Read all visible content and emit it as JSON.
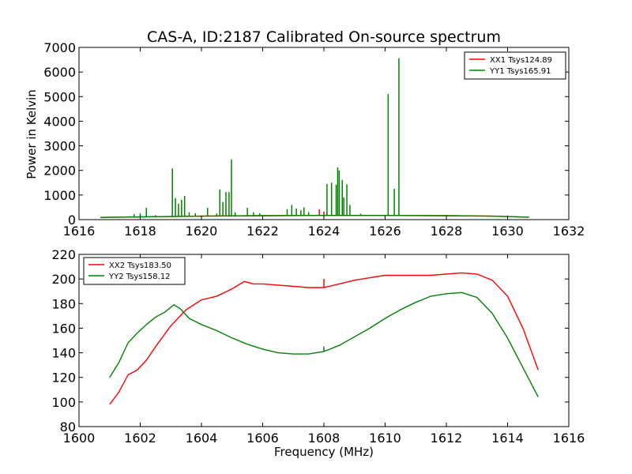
{
  "chart_data": [
    {
      "type": "line",
      "title": "CAS-A, ID:2187 Calibrated On-source spectrum",
      "xlabel": "",
      "ylabel": "Power in Kelvin",
      "xlim": [
        1616,
        1632
      ],
      "ylim": [
        0,
        7000
      ],
      "xticks": [
        "1616",
        "1618",
        "1620",
        "1622",
        "1624",
        "1626",
        "1628",
        "1630",
        "1632"
      ],
      "yticks": [
        "0",
        "1000",
        "2000",
        "3000",
        "4000",
        "5000",
        "6000",
        "7000"
      ],
      "grid": false,
      "legend_position": "top-right",
      "series": [
        {
          "name": "XX1 Tsys124.89",
          "color": "#ff0000",
          "baseline": [
            [
              1616.7,
              90
            ],
            [
              1618,
              110
            ],
            [
              1620,
              140
            ],
            [
              1622,
              160
            ],
            [
              1624,
              170
            ],
            [
              1626,
              170
            ],
            [
              1628,
              160
            ],
            [
              1629.5,
              140
            ],
            [
              1630.7,
              100
            ]
          ],
          "spikes": [
            [
              1623.85,
              420
            ],
            [
              1624.0,
              330
            ],
            [
              1624.1,
              250
            ],
            [
              1625.0,
              190
            ]
          ]
        },
        {
          "name": "YY1 Tsys165.91",
          "color": "#008000",
          "baseline": [
            [
              1616.7,
              90
            ],
            [
              1618,
              110
            ],
            [
              1620,
              140
            ],
            [
              1622,
              160
            ],
            [
              1624,
              170
            ],
            [
              1626,
              170
            ],
            [
              1628,
              160
            ],
            [
              1629.5,
              140
            ],
            [
              1630.7,
              100
            ]
          ],
          "spikes": [
            [
              1617.8,
              220
            ],
            [
              1618.0,
              250
            ],
            [
              1618.2,
              480
            ],
            [
              1618.5,
              180
            ],
            [
              1619.05,
              2080
            ],
            [
              1619.15,
              880
            ],
            [
              1619.25,
              650
            ],
            [
              1619.35,
              800
            ],
            [
              1619.45,
              960
            ],
            [
              1619.6,
              300
            ],
            [
              1619.8,
              260
            ],
            [
              1620.2,
              480
            ],
            [
              1620.5,
              250
            ],
            [
              1620.6,
              1230
            ],
            [
              1620.7,
              720
            ],
            [
              1620.8,
              1120
            ],
            [
              1620.9,
              1120
            ],
            [
              1620.98,
              2450
            ],
            [
              1621.1,
              300
            ],
            [
              1621.5,
              480
            ],
            [
              1621.7,
              300
            ],
            [
              1621.9,
              260
            ],
            [
              1622.8,
              420
            ],
            [
              1622.95,
              600
            ],
            [
              1623.1,
              450
            ],
            [
              1623.25,
              380
            ],
            [
              1623.35,
              500
            ],
            [
              1623.5,
              300
            ],
            [
              1624.1,
              1450
            ],
            [
              1624.25,
              1500
            ],
            [
              1624.4,
              1420
            ],
            [
              1624.45,
              2120
            ],
            [
              1624.5,
              2000
            ],
            [
              1624.6,
              1610
            ],
            [
              1624.65,
              900
            ],
            [
              1624.75,
              1430
            ],
            [
              1624.85,
              600
            ],
            [
              1625.2,
              240
            ],
            [
              1626.1,
              5100
            ],
            [
              1626.3,
              1250
            ],
            [
              1626.45,
              6560
            ]
          ]
        }
      ]
    },
    {
      "type": "line",
      "title": "",
      "xlabel": "Frequency (MHz)",
      "ylabel": "",
      "xlim": [
        1600,
        1616
      ],
      "ylim": [
        80,
        220
      ],
      "xticks": [
        "1600",
        "1602",
        "1604",
        "1606",
        "1608",
        "1610",
        "1612",
        "1614",
        "1616"
      ],
      "yticks": [
        "80",
        "100",
        "120",
        "140",
        "160",
        "180",
        "200",
        "220"
      ],
      "grid": false,
      "legend_position": "top-left",
      "series": [
        {
          "name": "XX2 Tsys183.50",
          "color": "#ff0000",
          "points": [
            [
              1601.0,
              98
            ],
            [
              1601.3,
              108
            ],
            [
              1601.6,
              122
            ],
            [
              1601.9,
              126
            ],
            [
              1602.2,
              134
            ],
            [
              1602.5,
              145
            ],
            [
              1603.0,
              162
            ],
            [
              1603.5,
              175
            ],
            [
              1604.0,
              183
            ],
            [
              1604.5,
              186
            ],
            [
              1605.0,
              192
            ],
            [
              1605.4,
              198
            ],
            [
              1605.7,
              196
            ],
            [
              1606.0,
              196
            ],
            [
              1606.5,
              195
            ],
            [
              1607.0,
              194
            ],
            [
              1607.5,
              193
            ],
            [
              1608.0,
              193
            ],
            [
              1608.5,
              196
            ],
            [
              1609.0,
              199
            ],
            [
              1609.5,
              201
            ],
            [
              1610.0,
              203
            ],
            [
              1610.5,
              203
            ],
            [
              1611.0,
              203
            ],
            [
              1611.5,
              203
            ],
            [
              1612.0,
              204
            ],
            [
              1612.5,
              205
            ],
            [
              1613.0,
              204
            ],
            [
              1613.5,
              199
            ],
            [
              1614.0,
              186
            ],
            [
              1614.5,
              160
            ],
            [
              1615.0,
              126
            ]
          ],
          "spikes": [
            [
              1608.0,
              200
            ]
          ]
        },
        {
          "name": "YY2 Tsys158.12",
          "color": "#008000",
          "points": [
            [
              1601.0,
              120
            ],
            [
              1601.3,
              132
            ],
            [
              1601.6,
              148
            ],
            [
              1601.9,
              156
            ],
            [
              1602.2,
              163
            ],
            [
              1602.5,
              169
            ],
            [
              1602.8,
              173
            ],
            [
              1603.1,
              179
            ],
            [
              1603.3,
              176
            ],
            [
              1603.6,
              168
            ],
            [
              1604.0,
              163
            ],
            [
              1604.5,
              158
            ],
            [
              1605.0,
              152
            ],
            [
              1605.5,
              147
            ],
            [
              1606.0,
              143
            ],
            [
              1606.5,
              140
            ],
            [
              1607.0,
              139
            ],
            [
              1607.5,
              139
            ],
            [
              1608.0,
              141
            ],
            [
              1608.5,
              146
            ],
            [
              1609.0,
              153
            ],
            [
              1609.5,
              160
            ],
            [
              1610.0,
              168
            ],
            [
              1610.5,
              175
            ],
            [
              1611.0,
              181
            ],
            [
              1611.5,
              186
            ],
            [
              1612.0,
              188
            ],
            [
              1612.5,
              189
            ],
            [
              1613.0,
              185
            ],
            [
              1613.5,
              172
            ],
            [
              1614.0,
              152
            ],
            [
              1614.5,
              128
            ],
            [
              1615.0,
              104
            ]
          ],
          "spikes": [
            [
              1608.0,
              145
            ]
          ]
        }
      ]
    }
  ]
}
